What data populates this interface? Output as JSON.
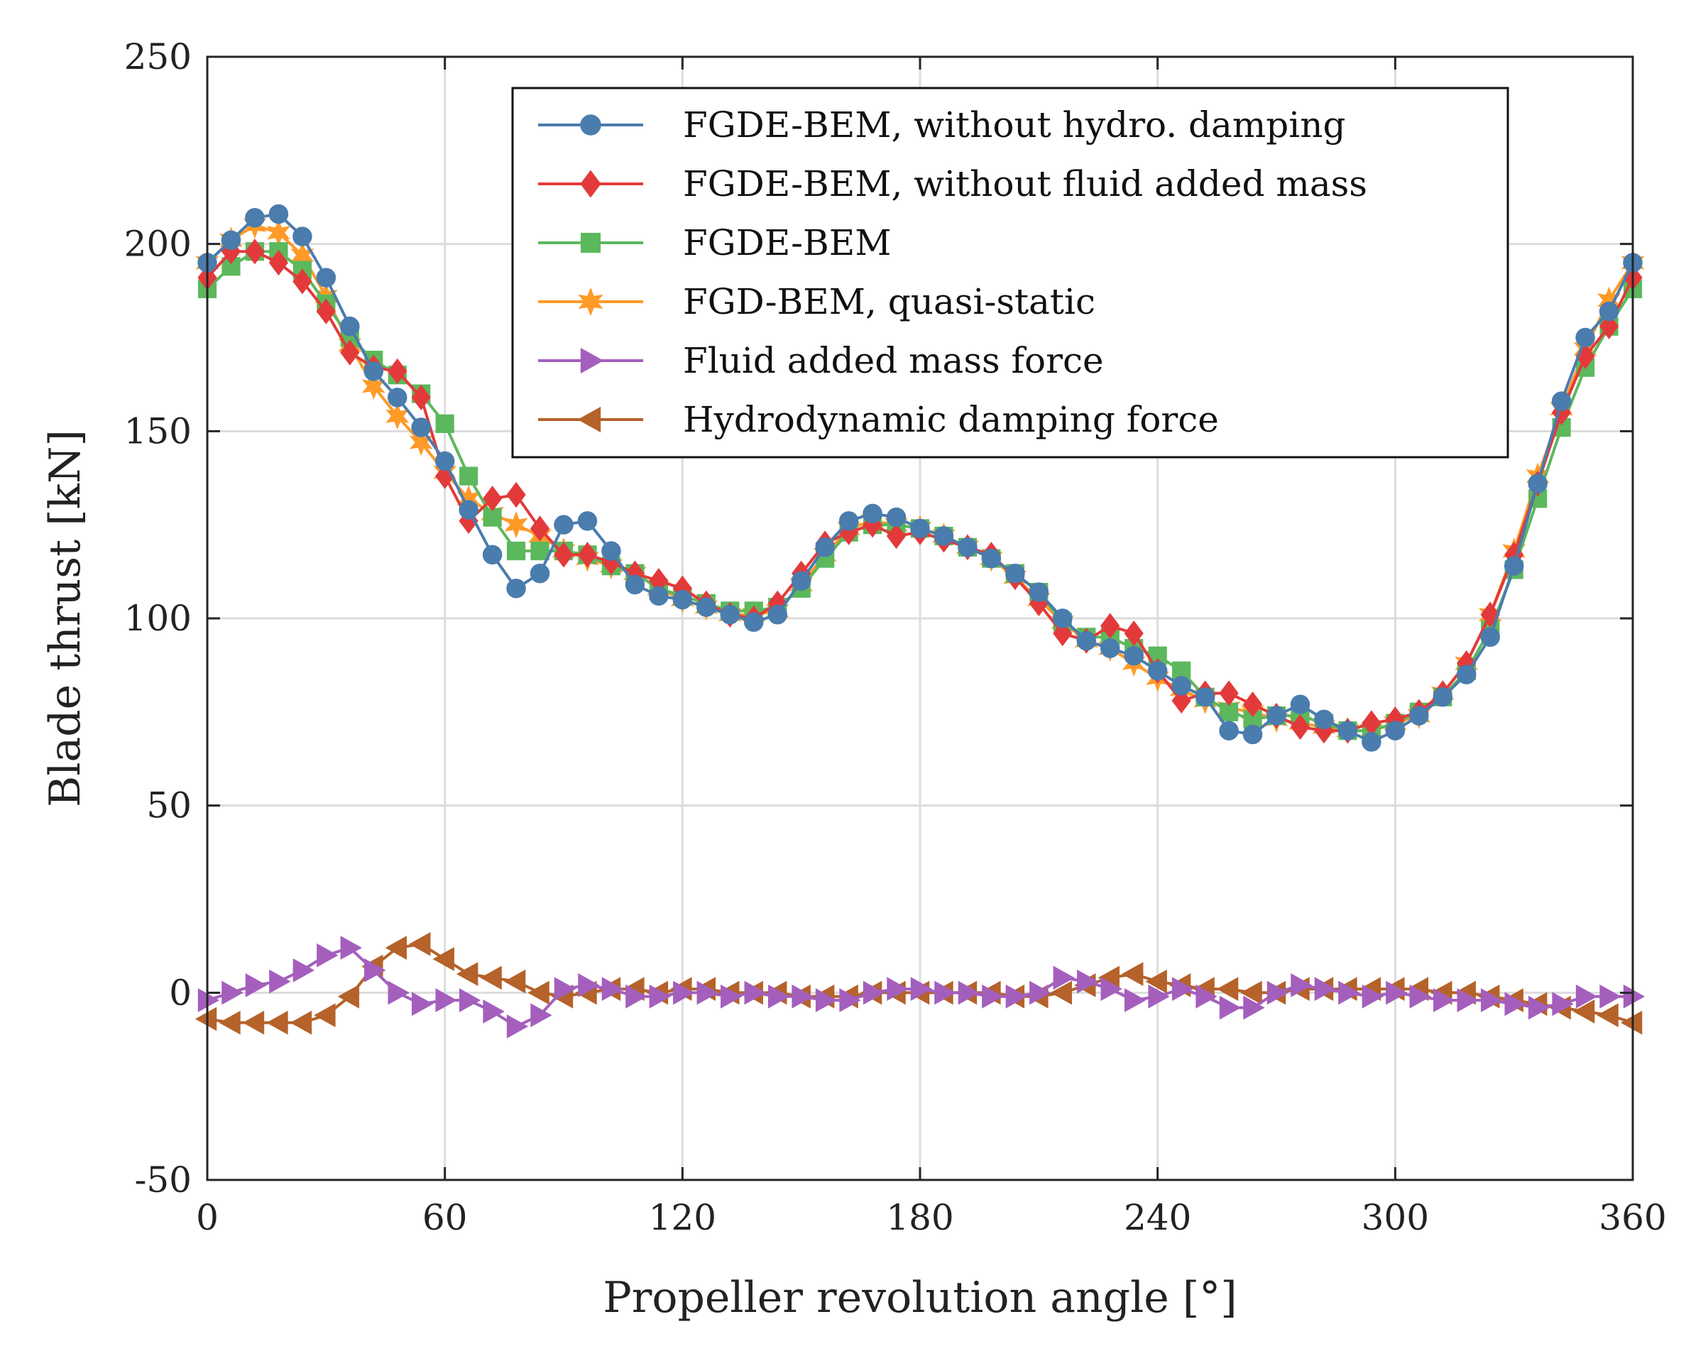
{
  "chart_data": {
    "type": "line",
    "xlabel": "Propeller revolution angle [°]",
    "ylabel": "Blade thrust [kN]",
    "xlim": [
      0,
      360
    ],
    "ylim": [
      -50,
      250
    ],
    "xticks": [
      0,
      60,
      120,
      180,
      240,
      300,
      360
    ],
    "yticks": [
      -50,
      0,
      50,
      100,
      150,
      200,
      250
    ],
    "xtick_labels": [
      "0",
      "60",
      "120",
      "180",
      "240",
      "300",
      "360"
    ],
    "ytick_labels": [
      "-50",
      "0",
      "50",
      "100",
      "150",
      "200",
      "250"
    ],
    "grid": true,
    "legend_position": "top-right",
    "x": [
      0,
      6,
      12,
      18,
      24,
      30,
      36,
      42,
      48,
      54,
      60,
      66,
      72,
      78,
      84,
      90,
      96,
      102,
      108,
      114,
      120,
      126,
      132,
      138,
      144,
      150,
      156,
      162,
      168,
      174,
      180,
      186,
      192,
      198,
      204,
      210,
      216,
      222,
      228,
      234,
      240,
      246,
      252,
      258,
      264,
      270,
      276,
      282,
      288,
      294,
      300,
      306,
      312,
      318,
      324,
      330,
      336,
      342,
      348,
      354,
      360
    ],
    "series": [
      {
        "name": "FGDE-BEM, without hydro. damping",
        "color": "#4a7cad",
        "marker": "circle",
        "values": [
          195,
          201,
          207,
          208,
          202,
          191,
          178,
          166,
          159,
          151,
          142,
          129,
          117,
          108,
          112,
          125,
          126,
          118,
          109,
          106,
          105,
          103,
          101,
          99,
          101,
          110,
          119,
          126,
          128,
          127,
          124,
          122,
          119,
          116,
          112,
          107,
          100,
          94,
          92,
          90,
          86,
          82,
          79,
          70,
          69,
          74,
          77,
          73,
          70,
          67,
          70,
          74,
          79,
          85,
          95,
          114,
          136,
          158,
          175,
          182,
          195
        ]
      },
      {
        "name": "FGDE-BEM, without fluid added mass",
        "color": "#e23a3a",
        "marker": "diamond",
        "values": [
          191,
          198,
          198,
          195,
          190,
          182,
          171,
          167,
          166,
          159,
          138,
          126,
          132,
          133,
          124,
          117,
          117,
          115,
          112,
          110,
          108,
          104,
          101,
          100,
          104,
          112,
          120,
          123,
          125,
          122,
          123,
          121,
          119,
          117,
          111,
          104,
          96,
          94,
          98,
          96,
          86,
          78,
          80,
          80,
          77,
          74,
          71,
          70,
          70,
          72,
          73,
          75,
          80,
          88,
          101,
          117,
          136,
          155,
          170,
          178,
          191
        ]
      },
      {
        "name": "FGDE-BEM",
        "color": "#5cb85c",
        "marker": "square",
        "values": [
          188,
          194,
          198,
          198,
          193,
          184,
          175,
          169,
          165,
          160,
          152,
          138,
          127,
          118,
          118,
          118,
          117,
          114,
          112,
          108,
          106,
          104,
          102,
          102,
          103,
          108,
          116,
          123,
          125,
          125,
          124,
          122,
          119,
          116,
          112,
          107,
          99,
          95,
          95,
          92,
          90,
          86,
          79,
          75,
          73,
          74,
          74,
          72,
          70,
          70,
          72,
          75,
          79,
          86,
          97,
          113,
          132,
          151,
          167,
          178,
          188
        ]
      },
      {
        "name": "FGD-BEM, quasi-static",
        "color": "#ff9a28",
        "marker": "star",
        "values": [
          195,
          201,
          205,
          203,
          197,
          186,
          173,
          162,
          154,
          147,
          139,
          132,
          128,
          125,
          122,
          118,
          116,
          114,
          112,
          108,
          105,
          103,
          101,
          101,
          102,
          109,
          117,
          124,
          126,
          125,
          124,
          122,
          119,
          116,
          111,
          105,
          99,
          94,
          92,
          88,
          84,
          81,
          78,
          76,
          75,
          73,
          72,
          71,
          70,
          70,
          72,
          74,
          80,
          88,
          101,
          118,
          138,
          156,
          172,
          185,
          195
        ]
      },
      {
        "name": "Fluid added mass force",
        "color": "#a45fbd",
        "marker": "triangle-right",
        "values": [
          -2,
          0,
          2,
          3,
          6,
          10,
          12,
          6,
          0,
          -3,
          -2,
          -2,
          -5,
          -9,
          -6,
          1,
          2,
          1,
          -1,
          -1,
          0,
          0,
          -1,
          0,
          -1,
          -1,
          -2,
          -2,
          0,
          1,
          1,
          0,
          0,
          -1,
          -1,
          0,
          4,
          3,
          1,
          -2,
          -1,
          1,
          -1,
          -4,
          -4,
          0,
          2,
          1,
          0,
          -1,
          0,
          -1,
          -2,
          -2,
          -2,
          -3,
          -4,
          -3,
          -1,
          -1,
          -1
        ]
      },
      {
        "name": "Hydrodynamic damping force",
        "color": "#b5622b",
        "marker": "triangle-left",
        "values": [
          -7,
          -8,
          -8,
          -8,
          -8,
          -6,
          -1,
          7,
          12,
          13,
          9,
          5,
          4,
          3,
          0,
          -1,
          0,
          1,
          1,
          0,
          1,
          1,
          0,
          0,
          0,
          -1,
          -1,
          -1,
          0,
          0,
          0,
          0,
          0,
          0,
          -1,
          -1,
          0,
          2,
          4,
          5,
          3,
          2,
          1,
          1,
          0,
          0,
          1,
          1,
          1,
          1,
          1,
          1,
          0,
          0,
          -1,
          -2,
          -3,
          -4,
          -5,
          -6,
          -8
        ]
      }
    ]
  }
}
